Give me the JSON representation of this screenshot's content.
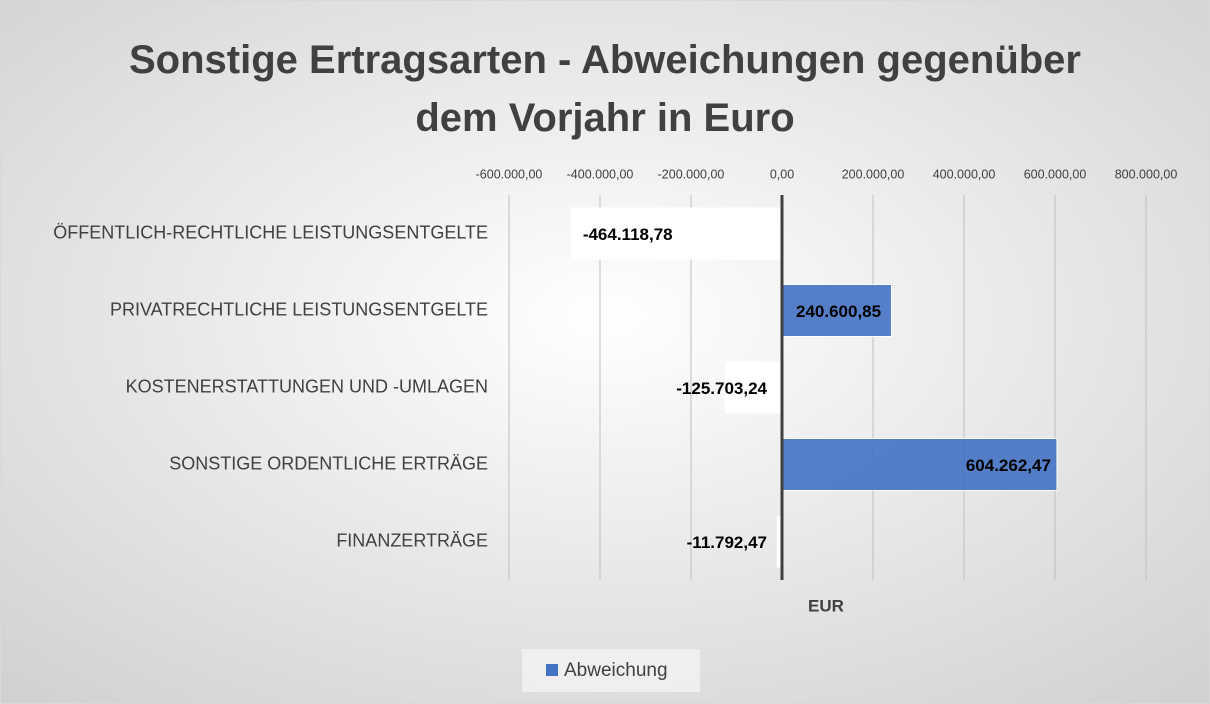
{
  "chart_data": {
    "type": "bar",
    "orientation": "horizontal",
    "title": "Sonstige Ertragsarten - Abweichungen gegenüber dem Vorjahr in Euro",
    "categories": [
      "ÖFFENTLICH-RECHTLICHE LEISTUNGSENTGELTE",
      "PRIVATRECHTLICHE LEISTUNGSENTGELTE",
      "KOSTENERSTATTUNGEN UND -UMLAGEN",
      "SONSTIGE ORDENTLICHE ERTRÄGE",
      "FINANZERTRÄGE"
    ],
    "series": [
      {
        "name": "Abweichung",
        "color": "#4472c4",
        "negative_color": "#ffffff",
        "values": [
          -464118.78,
          240600.85,
          -125703.24,
          604262.47,
          -11792.47
        ],
        "value_labels": [
          "-464.118,78",
          "240.600,85",
          "-125.703,24",
          "604.262,47",
          "-11.792,47"
        ]
      }
    ],
    "x_label": "EUR",
    "xlim": [
      -600000,
      800000
    ],
    "xticks": [
      {
        "value": -600000,
        "label": "-600.000,00"
      },
      {
        "value": -400000,
        "label": "-400.000,00"
      },
      {
        "value": -200000,
        "label": "-200.000,00"
      },
      {
        "value": 0,
        "label": "0,00"
      },
      {
        "value": 200000,
        "label": "200.000,00"
      },
      {
        "value": 400000,
        "label": "400.000,00"
      },
      {
        "value": 600000,
        "label": "600.000,00"
      },
      {
        "value": 800000,
        "label": "800.000,00"
      }
    ],
    "grid": true,
    "legend": "bottom"
  }
}
